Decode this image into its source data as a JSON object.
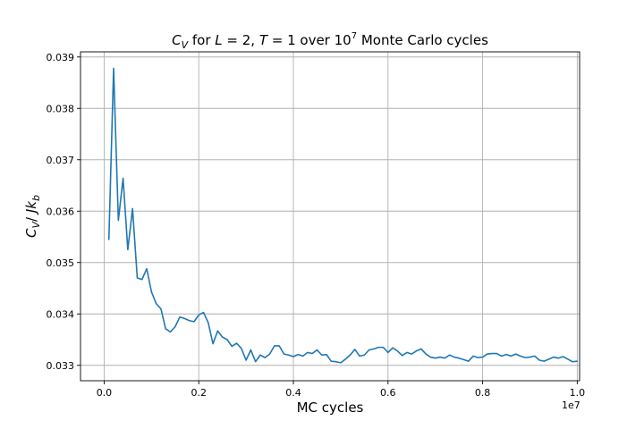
{
  "chart_data": {
    "type": "line",
    "title": "C_V for L = 2, T = 1 over 10^7 Monte Carlo cycles",
    "title_parts": {
      "prefix": "C",
      "prefix_sub": "V",
      "for_text": " for ",
      "L_var": "L",
      "L_eq": " = 2, ",
      "T_var": "T",
      "T_eq": " = 1 over 10",
      "exp": "7",
      "suffix": " Monte Carlo cycles"
    },
    "xlabel": "MC cycles",
    "ylabel": "C_V/ Jk_b",
    "ylabel_parts": {
      "main": "C",
      "sub": "V",
      "mid": "/ ",
      "J": "J",
      "k": "k",
      "k_sub": "b"
    },
    "x_offset_label": "1e7",
    "xlim": [
      -0.05,
      1.005
    ],
    "ylim": [
      0.0327,
      0.0391
    ],
    "xticks": [
      0.0,
      0.2,
      0.4,
      0.6,
      0.8,
      1.0
    ],
    "xtick_labels": [
      "0.0",
      "0.2",
      "0.4",
      "0.6",
      "0.8",
      "1.0"
    ],
    "yticks": [
      0.033,
      0.034,
      0.035,
      0.036,
      0.037,
      0.038,
      0.039
    ],
    "ytick_labels": [
      "0.033",
      "0.034",
      "0.035",
      "0.036",
      "0.037",
      "0.038",
      "0.039"
    ],
    "grid": true,
    "color": "#1f77b4",
    "series": [
      {
        "x": [
          0.01,
          0.02,
          0.03,
          0.04,
          0.05,
          0.06,
          0.07,
          0.08,
          0.09,
          0.1,
          0.11,
          0.12,
          0.13,
          0.14,
          0.15,
          0.16,
          0.17,
          0.18,
          0.19,
          0.2,
          0.21,
          0.22,
          0.23,
          0.24,
          0.25,
          0.26,
          0.27,
          0.28,
          0.29,
          0.3,
          0.31,
          0.32,
          0.33,
          0.34,
          0.35,
          0.36,
          0.37,
          0.38,
          0.39,
          0.4,
          0.41,
          0.42,
          0.43,
          0.44,
          0.45,
          0.46,
          0.47,
          0.48,
          0.49,
          0.5,
          0.51,
          0.52,
          0.53,
          0.54,
          0.55,
          0.56,
          0.57,
          0.58,
          0.59,
          0.6,
          0.61,
          0.62,
          0.63,
          0.64,
          0.65,
          0.66,
          0.67,
          0.68,
          0.69,
          0.7,
          0.71,
          0.72,
          0.73,
          0.74,
          0.75,
          0.76,
          0.77,
          0.78,
          0.79,
          0.8,
          0.81,
          0.82,
          0.83,
          0.84,
          0.85,
          0.86,
          0.87,
          0.88,
          0.89,
          0.9,
          0.91,
          0.92,
          0.93,
          0.94,
          0.95,
          0.96,
          0.97,
          0.98,
          0.99,
          1.0
        ],
        "y": [
          0.03545,
          0.03878,
          0.03582,
          0.03664,
          0.03525,
          0.03605,
          0.0347,
          0.03467,
          0.03488,
          0.03443,
          0.0342,
          0.0341,
          0.03371,
          0.03365,
          0.03375,
          0.03394,
          0.03391,
          0.03387,
          0.03385,
          0.03398,
          0.03403,
          0.03383,
          0.03342,
          0.03367,
          0.03355,
          0.0335,
          0.03337,
          0.03343,
          0.03333,
          0.0331,
          0.0333,
          0.03307,
          0.0332,
          0.03315,
          0.03322,
          0.03338,
          0.03338,
          0.03322,
          0.0332,
          0.03317,
          0.03321,
          0.03318,
          0.03325,
          0.03323,
          0.0333,
          0.0332,
          0.03321,
          0.03308,
          0.03307,
          0.03305,
          0.03312,
          0.0332,
          0.03331,
          0.03318,
          0.0332,
          0.0333,
          0.03332,
          0.03335,
          0.03335,
          0.03325,
          0.03334,
          0.03328,
          0.03319,
          0.03325,
          0.03322,
          0.03328,
          0.03332,
          0.03322,
          0.03316,
          0.03314,
          0.03316,
          0.03314,
          0.0332,
          0.03316,
          0.03314,
          0.03311,
          0.03308,
          0.03318,
          0.03315,
          0.03316,
          0.03322,
          0.03323,
          0.03323,
          0.03318,
          0.03321,
          0.03318,
          0.03322,
          0.03318,
          0.03315,
          0.03316,
          0.03318,
          0.0331,
          0.03308,
          0.03312,
          0.03316,
          0.03314,
          0.03317,
          0.03312,
          0.03307,
          0.03308
        ]
      }
    ]
  }
}
